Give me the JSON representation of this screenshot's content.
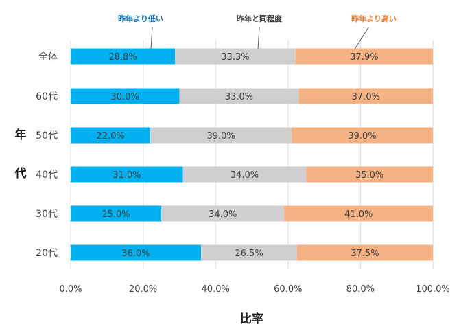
{
  "chart_data": {
    "type": "bar",
    "orientation": "horizontal",
    "stacked": true,
    "categories": [
      "全体",
      "60代",
      "50代",
      "40代",
      "30代",
      "20代"
    ],
    "series": [
      {
        "name": "昨年より低い",
        "color": "#00b0f0",
        "values": [
          28.8,
          30.0,
          22.0,
          31.0,
          25.0,
          36.0
        ],
        "labels": [
          "28.8%",
          "30.0%",
          "22.0%",
          "31.0%",
          "25.0%",
          "36.0%"
        ]
      },
      {
        "name": "昨年と同程度",
        "color": "#d0cece",
        "values": [
          33.3,
          33.0,
          39.0,
          34.0,
          34.0,
          26.5
        ],
        "labels": [
          "33.3%",
          "33.0%",
          "39.0%",
          "34.0%",
          "34.0%",
          "26.5%"
        ]
      },
      {
        "name": "昨年より高い",
        "color": "#f4b183",
        "values": [
          37.9,
          37.0,
          39.0,
          35.0,
          41.0,
          37.5
        ],
        "labels": [
          "37.9%",
          "37.0%",
          "39.0%",
          "35.0%",
          "41.0%",
          "37.5%"
        ]
      }
    ],
    "series_label_colors": [
      "#0070c0",
      "#404040",
      "#ed7d31"
    ],
    "xlabel": "比率",
    "ylabel": "年代",
    "xlim": [
      0,
      100
    ],
    "xticks": [
      "0.0%",
      "20.0%",
      "40.0%",
      "60.0%",
      "80.0%",
      "100.0%"
    ],
    "grid": true,
    "legend": "callout labels above top bar"
  }
}
